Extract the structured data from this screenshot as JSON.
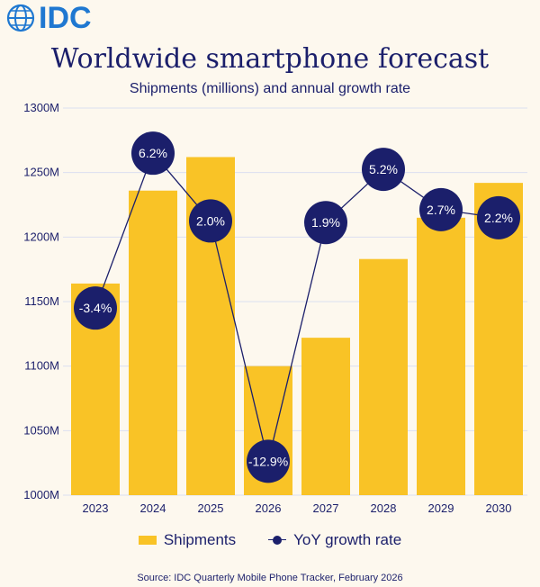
{
  "brand": {
    "name": "IDC",
    "color": "#1f78d1"
  },
  "colors": {
    "bar": "#f9c326",
    "line": "#1b1f6b",
    "text": "#1b1f6b",
    "grid": "#dcdff0",
    "background": "#fdf8ee"
  },
  "legend": {
    "bar_label": "Shipments",
    "line_label": "YoY growth rate"
  },
  "source": "Source:  IDC Quarterly Mobile Phone Tracker, February 2026",
  "chart_data": {
    "type": "bar",
    "title": "Worldwide smartphone forecast",
    "subtitle": "Shipments (millions) and annual growth rate",
    "categories": [
      "2023",
      "2024",
      "2025",
      "2026",
      "2027",
      "2028",
      "2029",
      "2030"
    ],
    "series": [
      {
        "name": "Shipments",
        "type": "bar",
        "values": [
          1164,
          1236,
          1262,
          1100,
          1122,
          1183,
          1215,
          1242
        ]
      },
      {
        "name": "YoY growth rate",
        "type": "line",
        "values": [
          -3.4,
          6.2,
          2.0,
          -12.9,
          1.9,
          5.2,
          2.7,
          2.2
        ],
        "labels": [
          "-3.4%",
          "6.2%",
          "2.0%",
          "-12.9%",
          "1.9%",
          "5.2%",
          "2.7%",
          "2.2%"
        ]
      }
    ],
    "ylim": [
      1000,
      1300
    ],
    "yticks": [
      1000,
      1050,
      1100,
      1150,
      1200,
      1250,
      1300
    ],
    "ytick_labels": [
      "1000M",
      "1050M",
      "1100M",
      "1150M",
      "1200M",
      "1250M",
      "1300M"
    ],
    "grid": true,
    "legend_position": "bottom"
  }
}
